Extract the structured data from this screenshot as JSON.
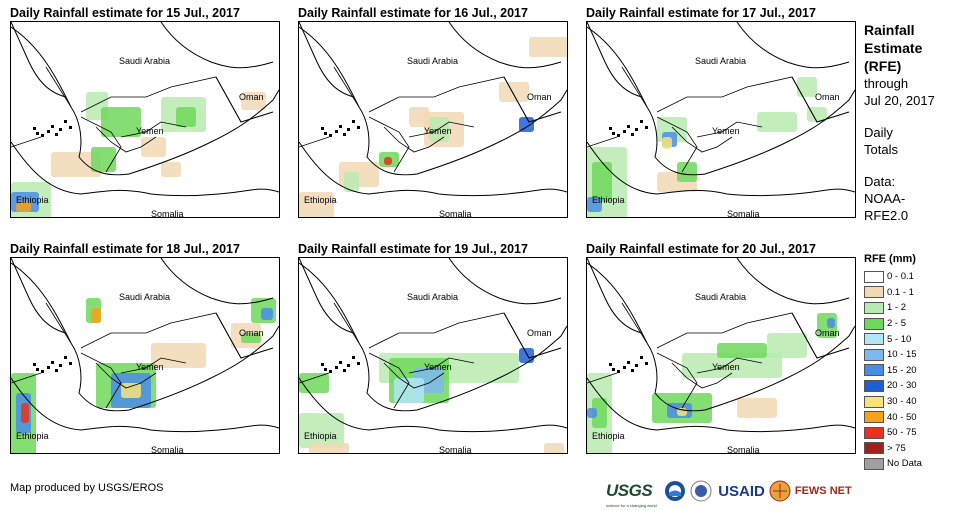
{
  "panels": [
    {
      "title": "Daily Rainfall estimate for 15 Jul., 2017"
    },
    {
      "title": "Daily Rainfall estimate for 16 Jul., 2017"
    },
    {
      "title": "Daily Rainfall estimate for 17 Jul., 2017"
    },
    {
      "title": "Daily Rainfall estimate for 18 Jul., 2017"
    },
    {
      "title": "Daily Rainfall estimate for 19 Jul., 2017"
    },
    {
      "title": "Daily Rainfall estimate for 20 Jul., 2017"
    }
  ],
  "map_labels": {
    "saudi": "Saudi Arabia",
    "oman": "Oman",
    "yemen": "Yemen",
    "ethiopia": "Ethiopia",
    "somalia": "Somalia"
  },
  "sidebar": {
    "title_lines": [
      "Rainfall",
      "Estimate",
      "(RFE)"
    ],
    "through": "through",
    "date": "Jul 20, 2017",
    "totals_lines": [
      "Daily",
      "Totals"
    ],
    "data_lines": [
      "Data:",
      "NOAA-",
      "RFE2.0"
    ]
  },
  "legend": {
    "title": "RFE (mm)",
    "items": [
      {
        "label": "0 - 0.1",
        "color": "#ffffff"
      },
      {
        "label": "0.1 - 1",
        "color": "#f1d9b5"
      },
      {
        "label": "1 - 2",
        "color": "#b8ebb0"
      },
      {
        "label": "2 - 5",
        "color": "#6ed85c"
      },
      {
        "label": "5 - 10",
        "color": "#b2e6f7"
      },
      {
        "label": "10 - 15",
        "color": "#7fb8ee"
      },
      {
        "label": "15 - 20",
        "color": "#4a8de6"
      },
      {
        "label": "20 - 30",
        "color": "#1f5fd6"
      },
      {
        "label": "30 - 40",
        "color": "#f7e37a"
      },
      {
        "label": "40 - 50",
        "color": "#f4a11b"
      },
      {
        "label": "50 - 75",
        "color": "#e8321c"
      },
      {
        "label": "> 75",
        "color": "#a0201c"
      },
      {
        "label": "No Data",
        "color": "#a0a0a0"
      }
    ]
  },
  "credit": "Map produced by USGS/EROS",
  "logos": {
    "usgs": "USGS",
    "usgs_tag": "science for a changing world",
    "usaid": "USAID",
    "fews": "FEWS NET"
  }
}
